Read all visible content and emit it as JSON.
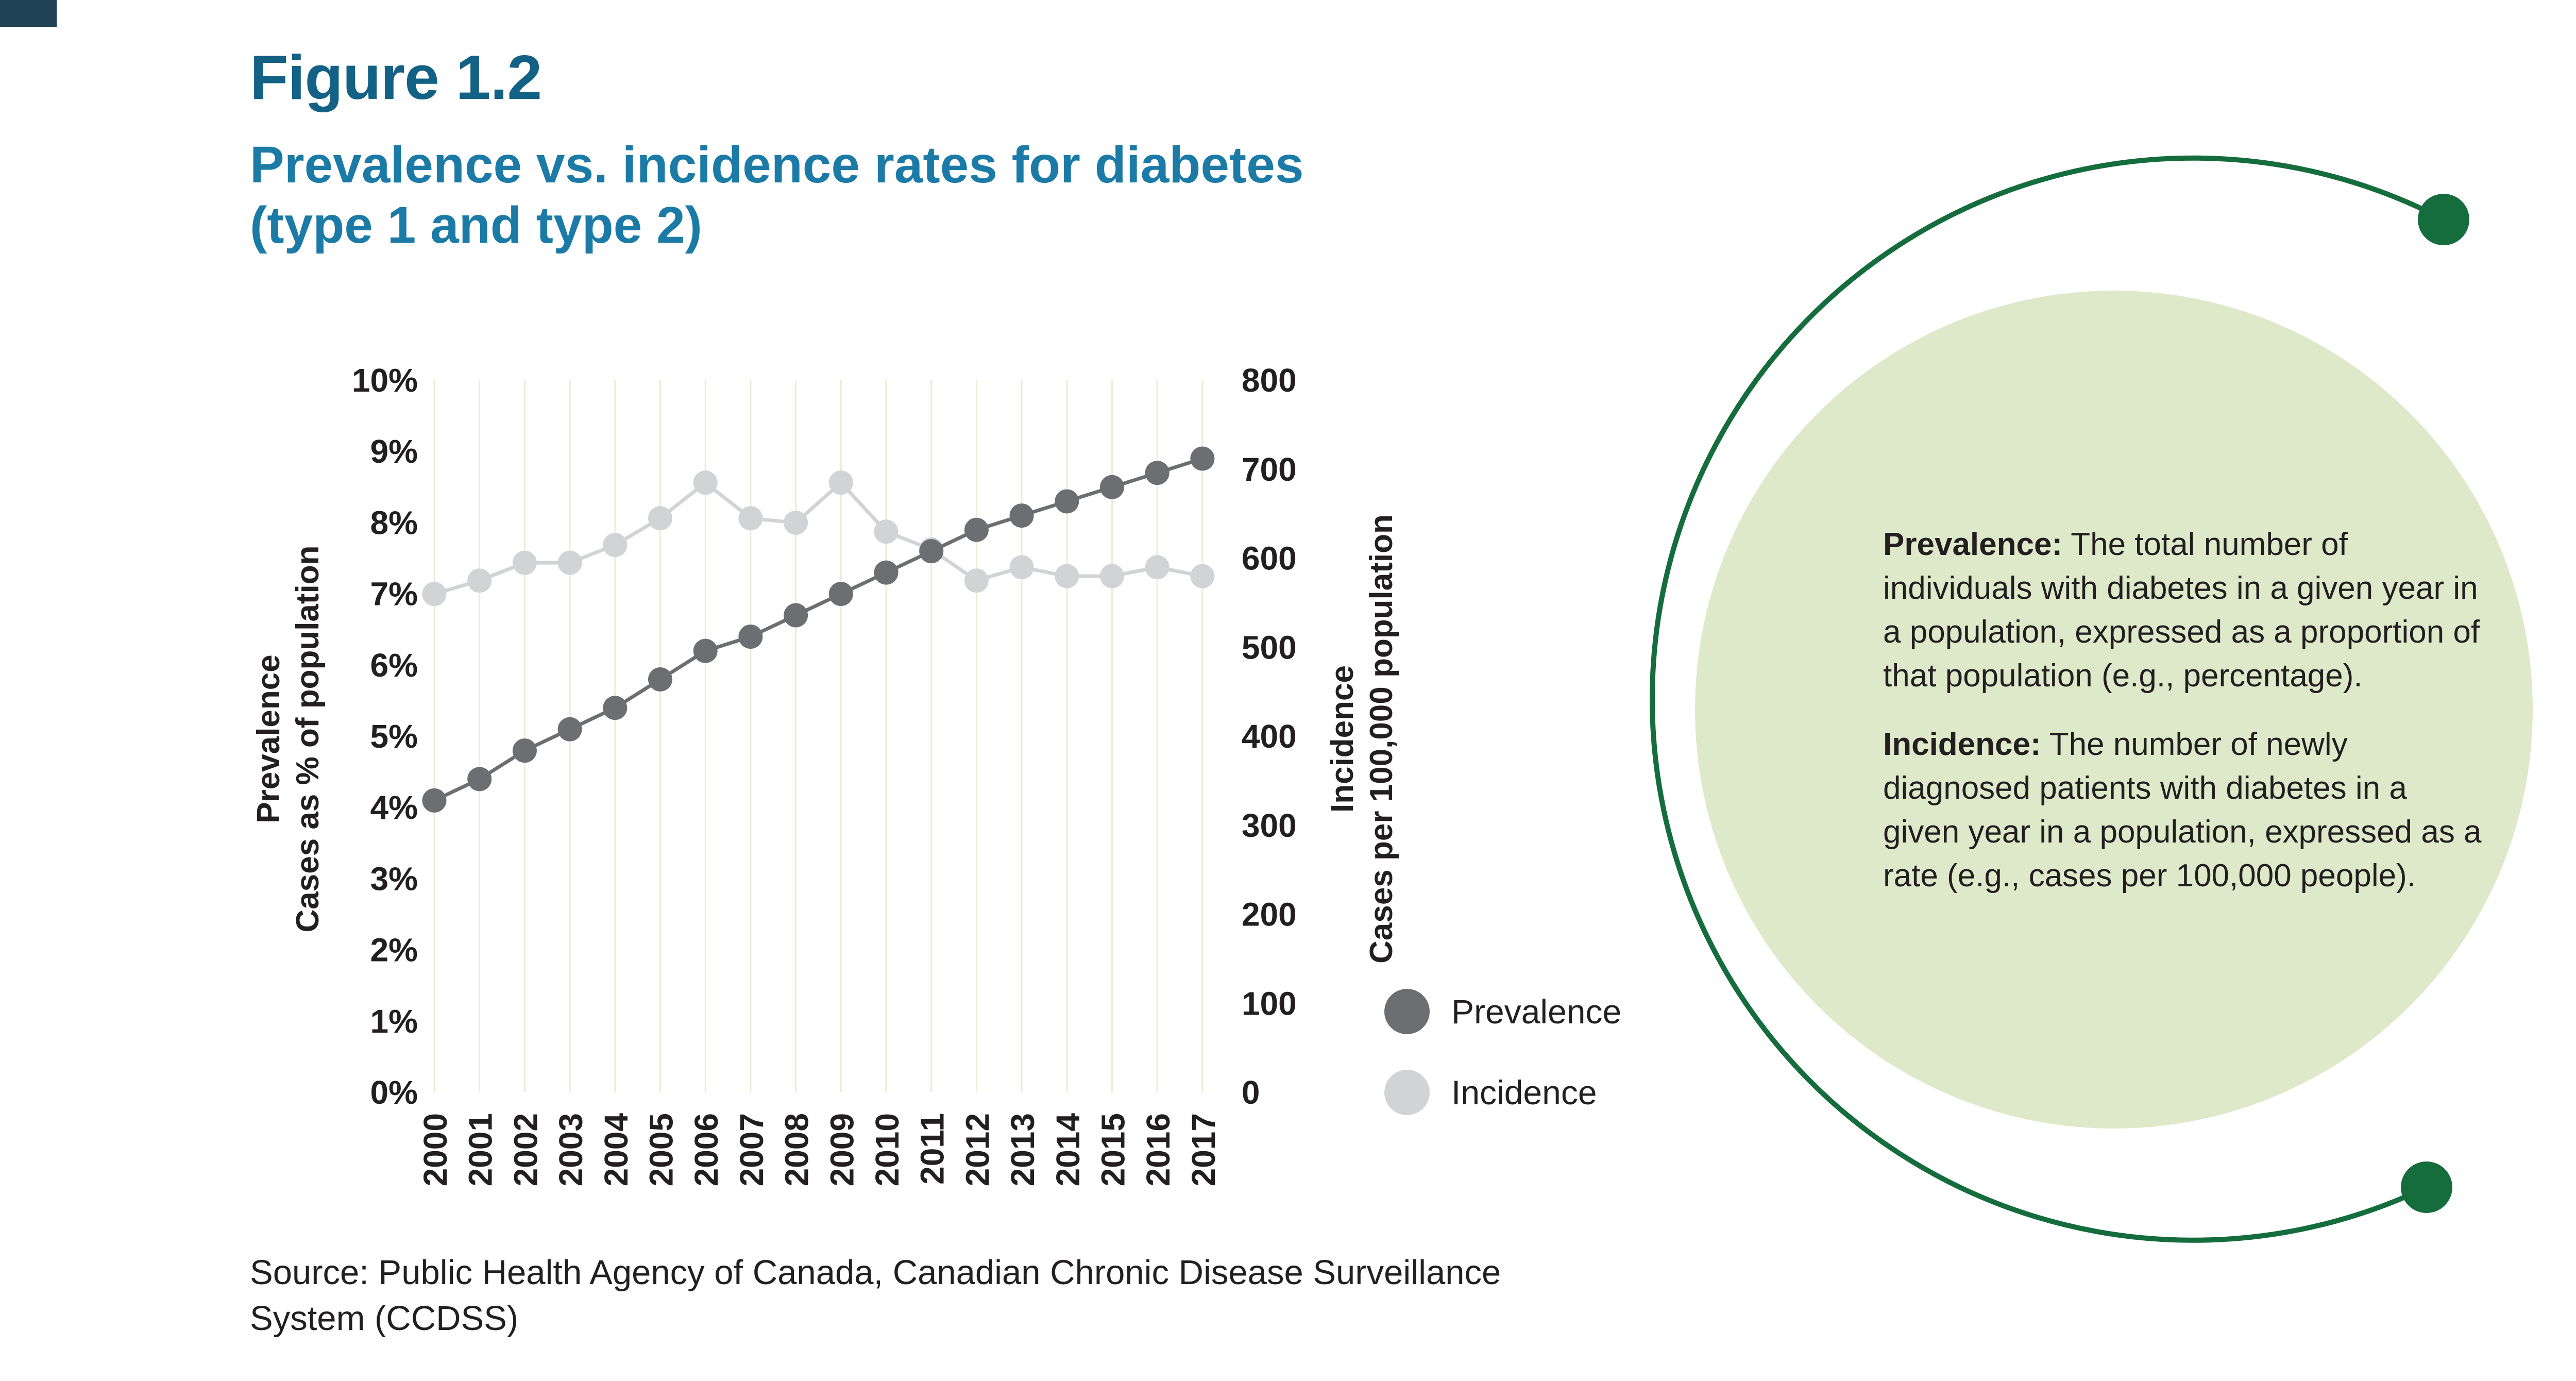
{
  "figure": {
    "label": "Figure 1.2",
    "title_line1": "Prevalence vs. incidence rates for diabetes",
    "title_line2": "(type 1 and type 2)"
  },
  "source": {
    "line1": "Source: Public Health Agency of Canada, Canadian Chronic Disease Surveillance",
    "line2": "System (CCDSS)"
  },
  "legend": [
    {
      "label": "Prevalence",
      "color": "#6d6e71"
    },
    {
      "label": "Incidence",
      "color": "#d1d3d4"
    }
  ],
  "definitions": [
    {
      "term": "Prevalence:",
      "text": " The total number of individuals with diabetes in a given year in a population, expressed as a proportion of that population (e.g., percentage)."
    },
    {
      "term": "Incidence:",
      "text": " The number of newly diagnosed patients with diabetes in a given year in a population, expressed as a rate (e.g., cases per 100,000 people)."
    }
  ],
  "colors": {
    "figure_label": "#136184",
    "figure_title": "#1b7ba6",
    "ink": "#231f20",
    "prevalence": "#6d6e71",
    "incidence": "#d1d3d4",
    "gridline": "#edebd8",
    "green_dark": "#156c3d",
    "green_light": "#dee9ca",
    "corner_mark": "#1f4254"
  },
  "chart_data": {
    "type": "line",
    "title": "Prevalence vs. incidence rates for diabetes (type 1 and type 2)",
    "categories": [
      "2000",
      "2001",
      "2002",
      "2003",
      "2004",
      "2005",
      "2006",
      "2007",
      "2008",
      "2009",
      "2010",
      "2011",
      "2012",
      "2013",
      "2014",
      "2015",
      "2016",
      "2017"
    ],
    "series": [
      {
        "name": "Prevalence",
        "axis": "left",
        "color": "#6d6e71",
        "values": [
          4.1,
          4.4,
          4.8,
          5.1,
          5.4,
          5.8,
          6.2,
          6.4,
          6.7,
          7.0,
          7.3,
          7.6,
          7.9,
          8.1,
          8.3,
          8.5,
          8.7,
          8.9
        ]
      },
      {
        "name": "Incidence",
        "axis": "right",
        "color": "#d1d3d4",
        "values": [
          560,
          575,
          595,
          595,
          615,
          645,
          685,
          645,
          640,
          685,
          630,
          610,
          575,
          590,
          580,
          580,
          590,
          580
        ]
      }
    ],
    "left_axis": {
      "title_line1": "Prevalence",
      "title_line2": "Cases as % of population",
      "ticks": [
        "10%",
        "9%",
        "8%",
        "7%",
        "6%",
        "5%",
        "4%",
        "3%",
        "2%",
        "1%",
        "0%"
      ],
      "min": 0,
      "max": 10
    },
    "right_axis": {
      "title_line1": "Incidence",
      "title_line2": "Cases per 100,000 population",
      "ticks": [
        "800",
        "700",
        "600",
        "500",
        "400",
        "300",
        "200",
        "100",
        "0"
      ],
      "min": 0,
      "max": 800
    },
    "grid": "vertical-only",
    "legend_position": "right-of-plot-bottom"
  }
}
